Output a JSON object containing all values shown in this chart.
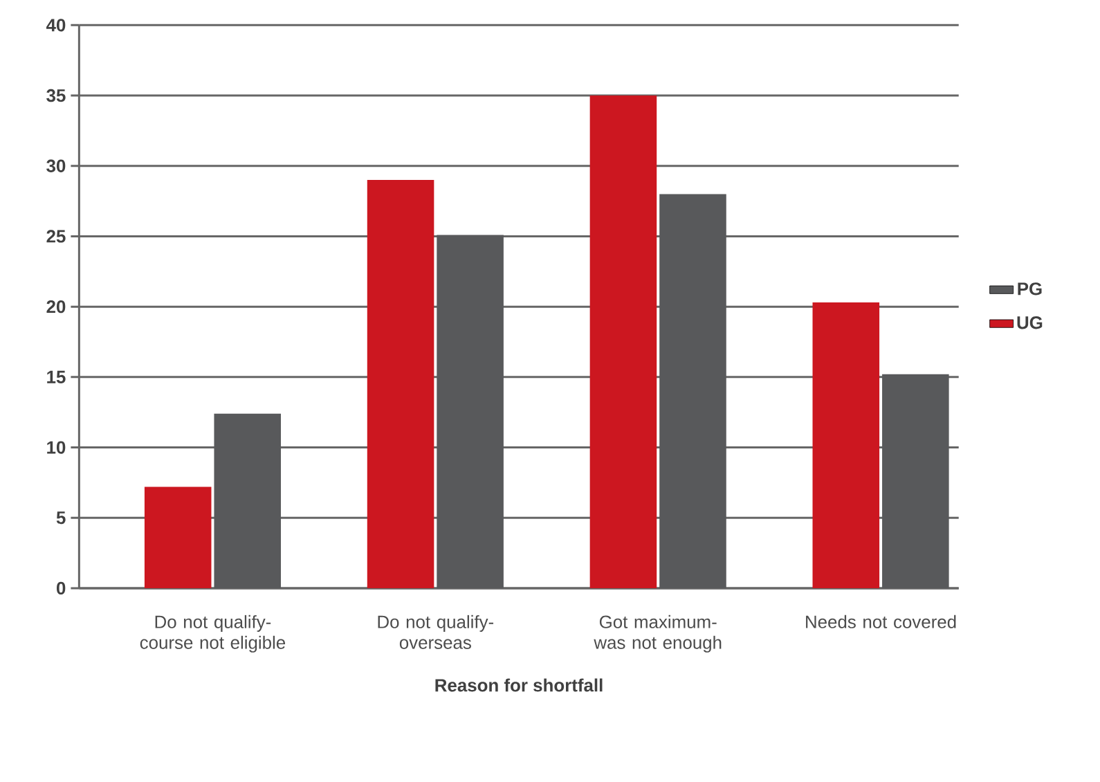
{
  "chart_data": {
    "type": "bar",
    "xlabel": "Reason for shortfall",
    "categories": [
      "Do not qualify-course not eligible",
      "Do not qualify-overseas",
      "Got maximum-was not enough",
      "Needs not covered"
    ],
    "series": [
      {
        "name": "UG",
        "color": "#cc1720",
        "values": [
          7.2,
          29,
          35,
          20.3
        ]
      },
      {
        "name": "PG",
        "color": "#58595b",
        "values": [
          12.4,
          25.1,
          28,
          15.2
        ]
      }
    ],
    "ylim": [
      0,
      40
    ],
    "yticks": [
      0,
      5,
      10,
      15,
      20,
      25,
      30,
      35,
      40
    ],
    "grid": "y",
    "legend": "right"
  }
}
